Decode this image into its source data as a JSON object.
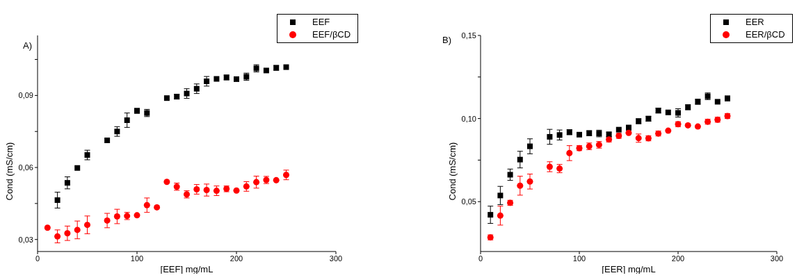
{
  "chart_data": [
    {
      "type": "scatter",
      "title": "A)",
      "xlabel": "[EEF] mg/mL",
      "ylabel": "Cond (mS/cm)",
      "xlim": [
        0,
        300
      ],
      "xticks": [
        0,
        100,
        200,
        300
      ],
      "ylim": [
        0.025,
        0.115
      ],
      "yticks": [
        {
          "value": 0.03,
          "label": "0,03"
        },
        {
          "value": 0.045,
          "label": null
        },
        {
          "value": 0.06,
          "label": "0,06"
        },
        {
          "value": 0.075,
          "label": null
        },
        {
          "value": 0.09,
          "label": "0,09"
        },
        {
          "value": 0.105,
          "label": null
        }
      ],
      "legend": "top right",
      "series": [
        {
          "name": "EEF",
          "color": "#000000",
          "marker": "square",
          "x": [
            20,
            30,
            40,
            50,
            70,
            80,
            90,
            100,
            110,
            130,
            140,
            150,
            160,
            170,
            180,
            190,
            200,
            210,
            220,
            230,
            240,
            250
          ],
          "values": [
            0.0464,
            0.0536,
            0.0598,
            0.0652,
            0.0713,
            0.075,
            0.0797,
            0.0836,
            0.0827,
            0.0889,
            0.0895,
            0.0908,
            0.0928,
            0.0959,
            0.0969,
            0.0975,
            0.0968,
            0.0978,
            0.1013,
            0.1004,
            0.1015,
            0.1018
          ],
          "errors": [
            0.0033,
            0.0025,
            null,
            0.002,
            null,
            0.002,
            0.003,
            0.001,
            0.0015,
            null,
            0.001,
            0.002,
            0.002,
            0.002,
            null,
            0.001,
            null,
            0.0015,
            0.0015,
            null,
            0.001,
            null
          ]
        },
        {
          "name": "EEF/βCD",
          "color": "#ff0000",
          "marker": "circle",
          "x": [
            10,
            20,
            30,
            40,
            50,
            70,
            80,
            90,
            100,
            110,
            120,
            130,
            140,
            150,
            160,
            170,
            180,
            190,
            200,
            210,
            220,
            230,
            240,
            250
          ],
          "values": [
            0.0349,
            0.0313,
            0.0326,
            0.034,
            0.0361,
            0.0379,
            0.0396,
            0.0398,
            0.0401,
            0.0443,
            0.0434,
            0.054,
            0.052,
            0.0488,
            0.0509,
            0.0506,
            0.0503,
            0.0511,
            0.0504,
            0.0521,
            0.0539,
            0.0548,
            0.0547,
            0.0569
          ],
          "errors": [
            null,
            0.0027,
            0.003,
            0.0037,
            0.0037,
            0.003,
            0.003,
            0.0015,
            null,
            0.003,
            null,
            null,
            0.0015,
            0.0015,
            0.002,
            0.0025,
            0.002,
            0.0012,
            null,
            0.002,
            0.0025,
            0.0015,
            null,
            0.002
          ]
        }
      ]
    },
    {
      "type": "scatter",
      "title": "B)",
      "xlabel": "[EER] mg/mL",
      "ylabel": "Cond (mS/cm)",
      "xlim": [
        0,
        300
      ],
      "xticks": [
        0,
        100,
        200,
        300
      ],
      "ylim": [
        0.02,
        0.15
      ],
      "yticks": [
        {
          "value": 0.05,
          "label": "0,05"
        },
        {
          "value": 0.075,
          "label": null
        },
        {
          "value": 0.1,
          "label": "0,10"
        },
        {
          "value": 0.125,
          "label": null
        },
        {
          "value": 0.15,
          "label": "0,15"
        }
      ],
      "legend": "top right",
      "series": [
        {
          "name": "EER",
          "color": "#000000",
          "marker": "square",
          "x": [
            10,
            20,
            30,
            40,
            50,
            70,
            80,
            90,
            100,
            110,
            120,
            130,
            140,
            150,
            160,
            170,
            180,
            190,
            200,
            210,
            220,
            230,
            240,
            250
          ],
          "values": [
            0.0421,
            0.0537,
            0.0662,
            0.0753,
            0.0833,
            0.089,
            0.0901,
            0.0918,
            0.0903,
            0.0912,
            0.091,
            0.0904,
            0.0933,
            0.0945,
            0.0984,
            0.0999,
            0.1048,
            0.1037,
            0.1034,
            0.1068,
            0.1101,
            0.1134,
            0.1101,
            0.1121
          ],
          "errors": [
            0.0052,
            0.0055,
            0.0034,
            0.005,
            0.0045,
            0.0045,
            0.003,
            0.0015,
            null,
            0.0015,
            0.002,
            0.0015,
            null,
            0.0015,
            0.0015,
            0.0015,
            0.0015,
            null,
            0.0025,
            0.0015,
            0.0015,
            0.002,
            null,
            0.0015
          ]
        },
        {
          "name": "EER/βCD",
          "color": "#ff0000",
          "marker": "circle",
          "x": [
            10,
            20,
            30,
            40,
            50,
            70,
            80,
            90,
            100,
            110,
            120,
            130,
            140,
            150,
            160,
            170,
            180,
            190,
            200,
            210,
            220,
            230,
            240,
            250
          ],
          "values": [
            0.0285,
            0.0416,
            0.0493,
            0.0596,
            0.0621,
            0.071,
            0.0699,
            0.0792,
            0.0822,
            0.0833,
            0.0842,
            0.0874,
            0.0896,
            0.0914,
            0.0882,
            0.0881,
            0.091,
            0.0927,
            0.0966,
            0.0959,
            0.0952,
            0.0981,
            0.0993,
            0.1015
          ],
          "errors": [
            0.0015,
            0.0057,
            0.0015,
            0.0057,
            0.0045,
            0.003,
            0.0025,
            0.0045,
            0.0015,
            0.002,
            0.002,
            0.0015,
            0.0015,
            null,
            0.0025,
            0.0015,
            0.0015,
            null,
            0.0015,
            null,
            null,
            0.0015,
            0.0015,
            0.0015
          ]
        }
      ]
    }
  ]
}
